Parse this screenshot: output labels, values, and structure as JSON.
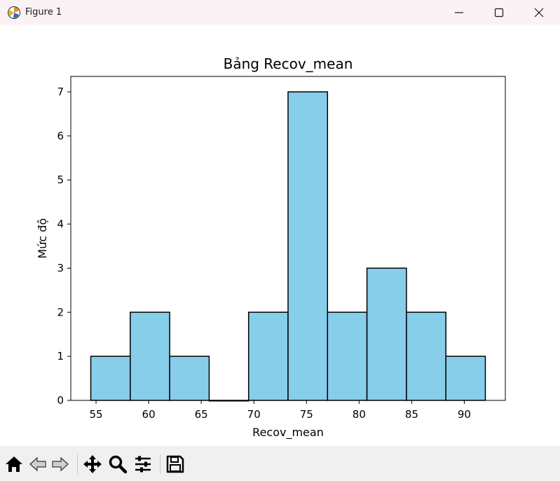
{
  "window": {
    "title": "Figure 1"
  },
  "toolbar": {
    "icons": [
      "home-icon",
      "back-icon",
      "forward-icon",
      "pan-icon",
      "zoom-icon",
      "configure-subplots-icon",
      "save-icon"
    ]
  },
  "colors": {
    "bar_fill": "#87ceeb",
    "bar_edge": "#000000",
    "titlebar": "#faf2f4",
    "toolbar": "#f0f0f0"
  },
  "chart_data": {
    "type": "bar",
    "title": "Bảng Recov_mean",
    "xlabel": "Recov_mean",
    "ylabel": "Mức độ",
    "bin_edges": [
      54.5,
      58.25,
      62.0,
      65.75,
      69.5,
      73.25,
      77.0,
      80.75,
      84.5,
      88.25,
      92.0
    ],
    "values": [
      1,
      2,
      1,
      0,
      2,
      7,
      2,
      3,
      2,
      1
    ],
    "xlim": [
      52.6,
      93.9
    ],
    "ylim": [
      0,
      7.35
    ],
    "xticks": [
      "55",
      "60",
      "65",
      "70",
      "75",
      "80",
      "85",
      "90"
    ],
    "yticks": [
      "0",
      "1",
      "2",
      "3",
      "4",
      "5",
      "6",
      "7"
    ],
    "grid": false
  }
}
